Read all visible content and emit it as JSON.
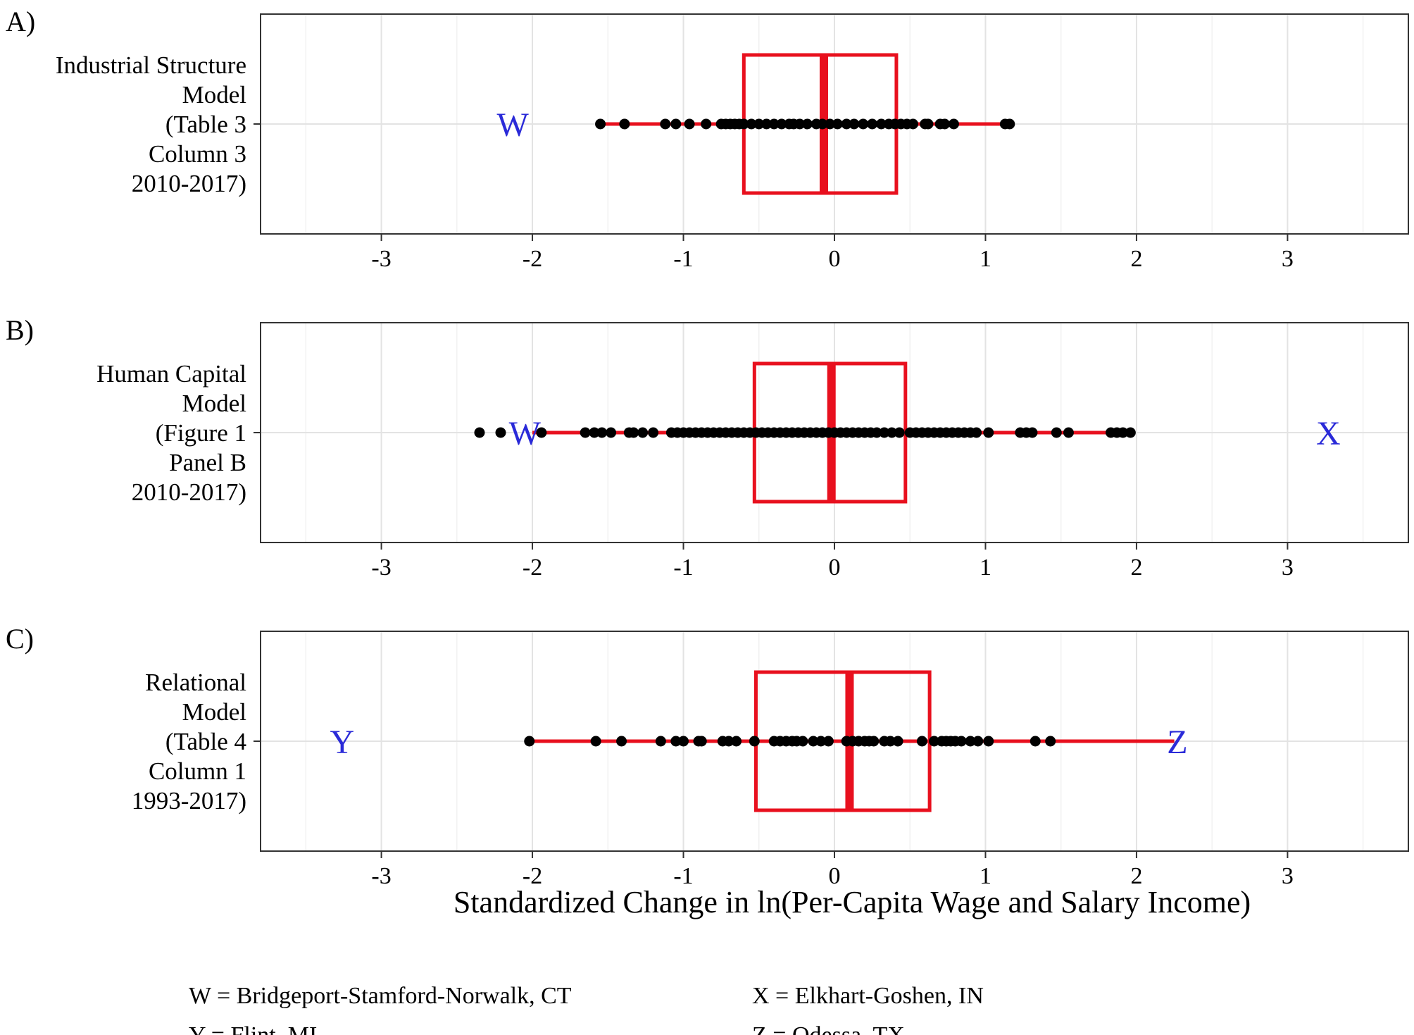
{
  "chart_data": {
    "type": "boxplot_with_points",
    "x_title": "Standardized Change in ln(Per-Capita Wage and Salary Income)",
    "xlim": [
      -3.8,
      3.8
    ],
    "x_ticks": [
      -3,
      -2,
      -1,
      0,
      1,
      2,
      3
    ],
    "x_tick_labels": [
      "-3",
      "-2",
      "-1",
      "0",
      "1",
      "2",
      "3"
    ],
    "colors": {
      "box": "#e8101e",
      "points": "#000000",
      "outlier_labels": "#2a2ad8",
      "frame": "#333333"
    },
    "panels": [
      {
        "tag": "A)",
        "y_label_lines": [
          "Industrial Structure",
          "Model",
          "(Table 3",
          "Column 3",
          "2010-2017)"
        ],
        "box": {
          "whisker_low": -1.55,
          "q1": -0.6,
          "median": -0.07,
          "q3": 0.41,
          "whisker_high": 1.15
        },
        "points": [
          -1.55,
          -1.39,
          -1.12,
          -1.05,
          -0.96,
          -0.85,
          -0.75,
          -0.72,
          -0.69,
          -0.66,
          -0.63,
          -0.6,
          -0.55,
          -0.5,
          -0.45,
          -0.4,
          -0.35,
          -0.3,
          -0.27,
          -0.23,
          -0.18,
          -0.12,
          -0.08,
          -0.03,
          0.02,
          0.08,
          0.13,
          0.19,
          0.25,
          0.31,
          0.36,
          0.4,
          0.44,
          0.48,
          0.52,
          0.6,
          0.62,
          0.7,
          0.73,
          0.79,
          1.13,
          1.16
        ],
        "outliers": [
          {
            "label": "W",
            "value": -2.13
          }
        ]
      },
      {
        "tag": "B)",
        "y_label_lines": [
          "Human Capital",
          "Model",
          "(Figure 1",
          "Panel B",
          "2010-2017)"
        ],
        "box": {
          "whisker_low": -2.0,
          "q1": -0.53,
          "median": -0.02,
          "q3": 0.47,
          "whisker_high": 1.97
        },
        "points": [
          -2.35,
          -2.21,
          -1.94,
          -1.65,
          -1.59,
          -1.54,
          -1.48,
          -1.36,
          -1.33,
          -1.27,
          -1.2,
          -1.08,
          -1.04,
          -1.0,
          -0.96,
          -0.92,
          -0.88,
          -0.84,
          -0.8,
          -0.76,
          -0.72,
          -0.68,
          -0.64,
          -0.6,
          -0.56,
          -0.52,
          -0.48,
          -0.44,
          -0.4,
          -0.36,
          -0.32,
          -0.28,
          -0.24,
          -0.2,
          -0.16,
          -0.12,
          -0.08,
          -0.04,
          0.0,
          0.04,
          0.08,
          0.12,
          0.16,
          0.2,
          0.24,
          0.28,
          0.33,
          0.38,
          0.43,
          0.5,
          0.54,
          0.58,
          0.62,
          0.66,
          0.7,
          0.74,
          0.78,
          0.82,
          0.86,
          0.9,
          0.94,
          1.02,
          1.23,
          1.27,
          1.31,
          1.47,
          1.55,
          1.83,
          1.87,
          1.91,
          1.96
        ],
        "outliers": [
          {
            "label": "W",
            "value": -2.05
          },
          {
            "label": "X",
            "value": 3.27
          }
        ]
      },
      {
        "tag": "C)",
        "y_label_lines": [
          "Relational",
          "Model",
          "(Table 4",
          "Column 1",
          "1993-2017)"
        ],
        "box": {
          "whisker_low": -2.02,
          "q1": -0.52,
          "median": 0.1,
          "q3": 0.63,
          "whisker_high": 2.25
        },
        "points": [
          -2.02,
          -1.58,
          -1.41,
          -1.15,
          -1.05,
          -1.0,
          -0.9,
          -0.88,
          -0.74,
          -0.7,
          -0.65,
          -0.53,
          -0.4,
          -0.36,
          -0.32,
          -0.28,
          -0.25,
          -0.21,
          -0.14,
          -0.09,
          -0.04,
          0.08,
          0.12,
          0.16,
          0.2,
          0.23,
          0.26,
          0.33,
          0.37,
          0.42,
          0.58,
          0.66,
          0.71,
          0.74,
          0.77,
          0.8,
          0.84,
          0.9,
          0.95,
          1.02,
          1.33,
          1.43
        ],
        "outliers": [
          {
            "label": "Y",
            "value": -3.26
          },
          {
            "label": "Z",
            "value": 2.27
          }
        ]
      }
    ],
    "legend": [
      "W = Bridgeport-Stamford-Norwalk, CT",
      "X = Elkhart-Goshen, IN",
      "Y = Flint, MI",
      "Z = Odessa, TX"
    ]
  }
}
